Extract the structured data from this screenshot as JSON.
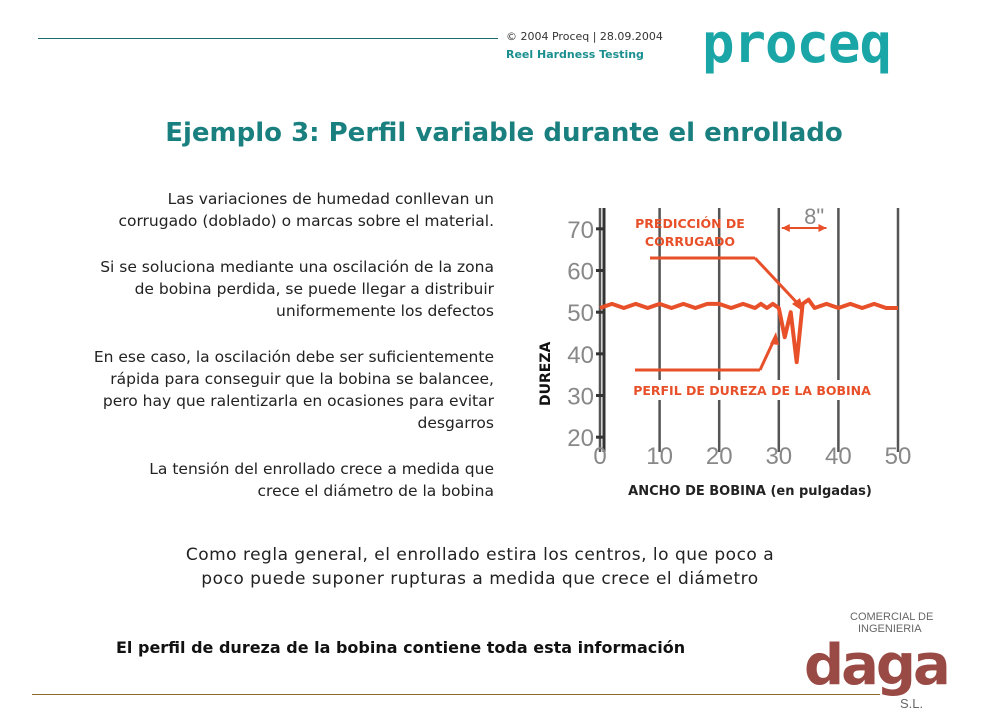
{
  "header": {
    "copyright": "© 2004 Proceq | 28.09.2004",
    "subtitle": "Reel Hardness Testing",
    "logo": "proceq"
  },
  "title": "Ejemplo 3: Perfil variable durante el enrollado",
  "paragraphs": [
    [
      "Las variaciones de humedad conllevan un",
      "corrugado (doblado) o marcas sobre el material."
    ],
    [
      "Si se soluciona mediante una oscilación de la zona",
      "de bobina perdida, se puede llegar a distribuir",
      "uniformemente los defectos"
    ],
    [
      "En ese caso, la oscilación debe ser suficientemente",
      "rápida para conseguir que la bobina se balancee,",
      "pero hay que ralentizarla en ocasiones para evitar",
      "desgarros"
    ],
    [
      "La tensión del enrollado crece a medida que",
      "crece el diámetro de la bobina"
    ]
  ],
  "chart_data": {
    "type": "line",
    "ylabel": "DUREZA",
    "xlabel": "ANCHO DE BOBINA (en pulgadas)",
    "x_ticks": [
      "0",
      "10",
      "20",
      "30",
      "40",
      "50"
    ],
    "y_ticks": [
      "20",
      "30",
      "40",
      "50",
      "60",
      "70"
    ],
    "xlim": [
      0,
      50
    ],
    "ylim": [
      15,
      75
    ],
    "annotation_top": [
      "PREDICCIÓN DE",
      "CORRUGADO"
    ],
    "annotation_bottom": "PERFIL DE DUREZA DE LA BOBINA",
    "span_label": "8\"",
    "series": [
      {
        "x": [
          0,
          2,
          4,
          6,
          8,
          10,
          12,
          14,
          16,
          18,
          20,
          22,
          24,
          26,
          27,
          28,
          29,
          30,
          31,
          32,
          33,
          34,
          35,
          36,
          38,
          40,
          42,
          44,
          46,
          48,
          50
        ],
        "y": [
          51,
          52,
          51,
          52,
          51,
          52,
          51,
          52,
          51,
          52,
          52,
          51,
          52,
          51,
          52,
          51,
          52,
          51,
          44,
          50,
          38,
          52,
          53,
          51,
          52,
          51,
          52,
          51,
          52,
          51,
          51
        ]
      }
    ],
    "colors": {
      "line": "#e8502a",
      "annotation": "#e8502a",
      "grid": "#555555"
    }
  },
  "rule_text": [
    "Como regla general,  el enrollado estira los centros, lo que poco a",
    "poco puede suponer rupturas a medida que crece el diámetro"
  ],
  "final_text": "El perfil de dureza de la bobina contiene toda esta información",
  "footer_logo": {
    "line1": "COMERCIAL DE",
    "line2": "INGENIERIA",
    "brand": "daga",
    "suffix": "S.L."
  }
}
